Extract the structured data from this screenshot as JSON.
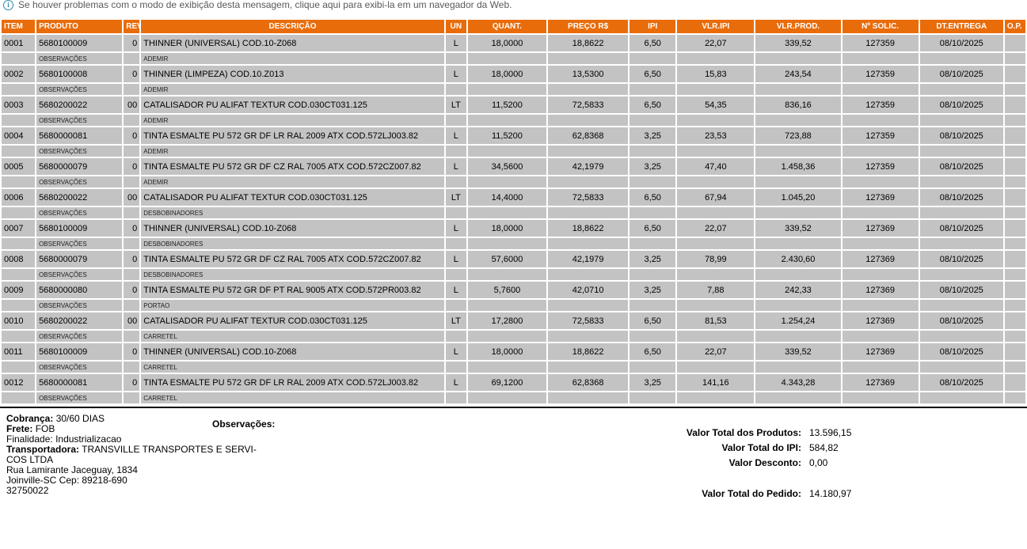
{
  "banner": {
    "text": "Se houver problemas com o modo de exibição desta mensagem, clique aqui para exibi-la em um navegador da Web."
  },
  "table": {
    "headers": [
      "ITEM",
      "PRODUTO",
      "REV",
      "DESCRIÇÃO",
      "UN",
      "QUANT.",
      "PREÇO R$",
      "IPI",
      "VLR.IPI",
      "VLR.PROD.",
      "Nº SOLIC.",
      "DT.ENTREGA",
      "O.P."
    ],
    "obs_label": "OBSERVAÇÕES",
    "rows": [
      {
        "item": "0001",
        "produto": "5680100009",
        "rev": "0",
        "descricao": "THINNER (UNIVERSAL) COD.10-Z068",
        "un": "L",
        "quant": "18,0000",
        "preco": "18,8622",
        "ipi": "6,50",
        "vlr_ipi": "22,07",
        "vlr_prod": "339,52",
        "solic": "127359",
        "entrega": "08/10/2025",
        "op": "",
        "obs": "ADEMIR"
      },
      {
        "item": "0002",
        "produto": "5680100008",
        "rev": "0",
        "descricao": "THINNER (LIMPEZA) COD.10.Z013",
        "un": "L",
        "quant": "18,0000",
        "preco": "13,5300",
        "ipi": "6,50",
        "vlr_ipi": "15,83",
        "vlr_prod": "243,54",
        "solic": "127359",
        "entrega": "08/10/2025",
        "op": "",
        "obs": "ADEMIR"
      },
      {
        "item": "0003",
        "produto": "5680200022",
        "rev": "00",
        "descricao": "CATALISADOR PU ALIFAT TEXTUR COD.030CT031.125",
        "un": "LT",
        "quant": "11,5200",
        "preco": "72,5833",
        "ipi": "6,50",
        "vlr_ipi": "54,35",
        "vlr_prod": "836,16",
        "solic": "127359",
        "entrega": "08/10/2025",
        "op": "",
        "obs": "ADEMIR"
      },
      {
        "item": "0004",
        "produto": "5680000081",
        "rev": "0",
        "descricao": "TINTA ESMALTE PU 572 GR DF LR RAL 2009 ATX COD.572LJ003.82",
        "un": "L",
        "quant": "11,5200",
        "preco": "62,8368",
        "ipi": "3,25",
        "vlr_ipi": "23,53",
        "vlr_prod": "723,88",
        "solic": "127359",
        "entrega": "08/10/2025",
        "op": "",
        "obs": "ADEMIR"
      },
      {
        "item": "0005",
        "produto": "5680000079",
        "rev": "0",
        "descricao": "TINTA ESMALTE PU 572 GR DF CZ RAL 7005 ATX COD.572CZ007.82",
        "un": "L",
        "quant": "34,5600",
        "preco": "42,1979",
        "ipi": "3,25",
        "vlr_ipi": "47,40",
        "vlr_prod": "1.458,36",
        "solic": "127359",
        "entrega": "08/10/2025",
        "op": "",
        "obs": "ADEMIR"
      },
      {
        "item": "0006",
        "produto": "5680200022",
        "rev": "00",
        "descricao": "CATALISADOR PU ALIFAT TEXTUR COD.030CT031.125",
        "un": "LT",
        "quant": "14,4000",
        "preco": "72,5833",
        "ipi": "6,50",
        "vlr_ipi": "67,94",
        "vlr_prod": "1.045,20",
        "solic": "127369",
        "entrega": "08/10/2025",
        "op": "",
        "obs": "DESBOBINADORES"
      },
      {
        "item": "0007",
        "produto": "5680100009",
        "rev": "0",
        "descricao": "THINNER (UNIVERSAL) COD.10-Z068",
        "un": "L",
        "quant": "18,0000",
        "preco": "18,8622",
        "ipi": "6,50",
        "vlr_ipi": "22,07",
        "vlr_prod": "339,52",
        "solic": "127369",
        "entrega": "08/10/2025",
        "op": "",
        "obs": "DESBOBINADORES"
      },
      {
        "item": "0008",
        "produto": "5680000079",
        "rev": "0",
        "descricao": "TINTA ESMALTE PU 572 GR DF CZ RAL 7005 ATX COD.572CZ007.82",
        "un": "L",
        "quant": "57,6000",
        "preco": "42,1979",
        "ipi": "3,25",
        "vlr_ipi": "78,99",
        "vlr_prod": "2.430,60",
        "solic": "127369",
        "entrega": "08/10/2025",
        "op": "",
        "obs": "DESBOBINADORES"
      },
      {
        "item": "0009",
        "produto": "5680000080",
        "rev": "0",
        "descricao": "TINTA ESMALTE PU 572 GR DF PT RAL 9005 ATX COD.572PR003.82",
        "un": "L",
        "quant": "5,7600",
        "preco": "42,0710",
        "ipi": "3,25",
        "vlr_ipi": "7,88",
        "vlr_prod": "242,33",
        "solic": "127369",
        "entrega": "08/10/2025",
        "op": "",
        "obs": "PORTAO"
      },
      {
        "item": "0010",
        "produto": "5680200022",
        "rev": "00",
        "descricao": "CATALISADOR PU ALIFAT TEXTUR COD.030CT031.125",
        "un": "LT",
        "quant": "17,2800",
        "preco": "72,5833",
        "ipi": "6,50",
        "vlr_ipi": "81,53",
        "vlr_prod": "1.254,24",
        "solic": "127369",
        "entrega": "08/10/2025",
        "op": "",
        "obs": "CARRETEL"
      },
      {
        "item": "0011",
        "produto": "5680100009",
        "rev": "0",
        "descricao": "THINNER (UNIVERSAL) COD.10-Z068",
        "un": "L",
        "quant": "18,0000",
        "preco": "18,8622",
        "ipi": "6,50",
        "vlr_ipi": "22,07",
        "vlr_prod": "339,52",
        "solic": "127369",
        "entrega": "08/10/2025",
        "op": "",
        "obs": "CARRETEL"
      },
      {
        "item": "0012",
        "produto": "5680000081",
        "rev": "0",
        "descricao": "TINTA ESMALTE PU 572 GR DF LR RAL 2009 ATX COD.572LJ003.82",
        "un": "L",
        "quant": "69,1200",
        "preco": "62,8368",
        "ipi": "3,25",
        "vlr_ipi": "141,16",
        "vlr_prod": "4.343,28",
        "solic": "127369",
        "entrega": "08/10/2025",
        "op": "",
        "obs": "CARRETEL"
      }
    ]
  },
  "footer": {
    "cobranca_label": "Cobrança:",
    "cobranca_value": "30/60 DIAS",
    "frete_label": "Frete:",
    "frete_value": "FOB",
    "finalidade_label": "Finalidade:",
    "finalidade_value": "Industrializacao",
    "transportadora_label": "Transportadora:",
    "transportadora_line1": "TRANSVILLE TRANSPORTES E SERVI-",
    "transportadora_line2": "COS LTDA",
    "endereco": "Rua Lamirante Jaceguay, 1834",
    "cidade_cep": "Joinville-SC Cep: 89218-690",
    "codigo": "32750022",
    "observacoes_label": "Observações:",
    "totals": [
      {
        "label": "Valor Total dos Produtos:",
        "value": "13.596,15",
        "final": false
      },
      {
        "label": "Valor Total do IPI:",
        "value": "584,82",
        "final": false
      },
      {
        "label": "Valor Desconto:",
        "value": "0,00",
        "final": false
      },
      {
        "label": "Valor Total do Pedido:",
        "value": "14.180,97",
        "final": true
      }
    ]
  },
  "colors": {
    "header_bg": "#e96c0a",
    "row_bg": "#c3c3c3",
    "banner_icon": "#2e8ba3",
    "banner_text": "#595959"
  }
}
